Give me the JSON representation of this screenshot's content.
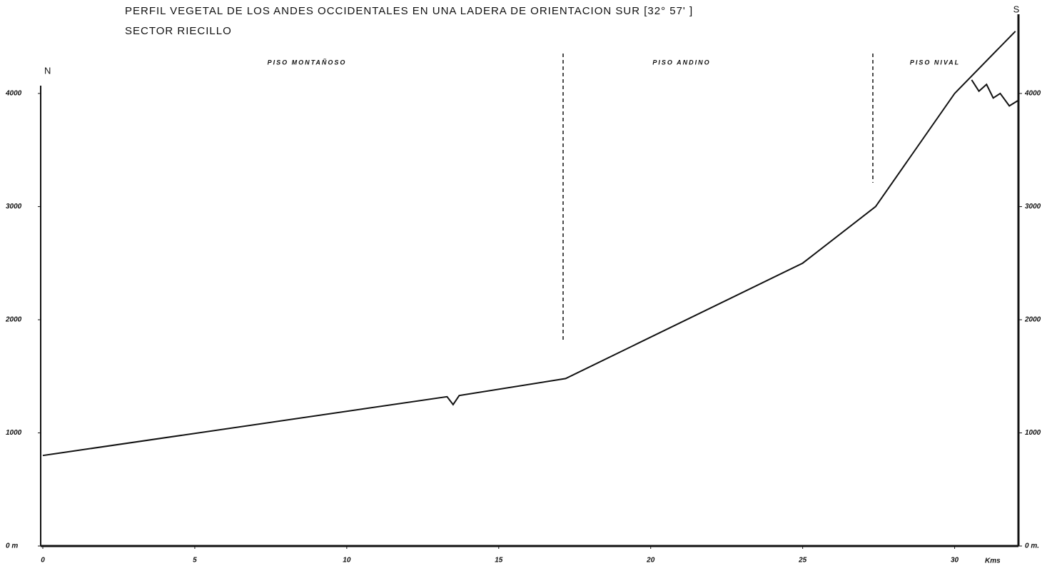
{
  "chart_data": {
    "type": "line",
    "title": "PERFIL VEGETAL DE LOS ANDES OCCIDENTALES EN UNA LADERA DE ORIENTACION SUR [32° 57' ]",
    "subtitle": "SECTOR RIECILLO",
    "x_label": "Kms",
    "left_end_label": "N",
    "right_end_label": "S",
    "annotations": [
      "PISO MONTAÑOSO",
      "PISO ANDINO",
      "PISO NIVAL"
    ],
    "series": [
      {
        "color": "#111111",
        "x": [
          0,
          13.3,
          13.5,
          13.7,
          17.2,
          25,
          27.4,
          30,
          32
        ],
        "values": [
          800,
          1320,
          1250,
          1330,
          1480,
          2500,
          3000,
          4000,
          4550
        ]
      },
      {
        "color": "#111111",
        "x": [
          30.56,
          30.8,
          31.05,
          31.27,
          31.5,
          31.8,
          32.1
        ],
        "values": [
          4120,
          4020,
          4080,
          3960,
          4000,
          3890,
          3940
        ]
      }
    ],
    "xlim": [
      -0.07,
      32.1
    ],
    "xticks": [
      0,
      5,
      10,
      15,
      20,
      25,
      30
    ],
    "ylim": [
      0,
      4700
    ],
    "yticks": [
      {
        "value": 0,
        "label": "0 m"
      },
      1000,
      2000,
      3000,
      4000
    ],
    "y2lim": [
      0,
      4700
    ],
    "y2ticks": [
      {
        "value": 0,
        "label": "0 m."
      },
      1000,
      2000,
      3000,
      4000
    ],
    "grid": false
  }
}
